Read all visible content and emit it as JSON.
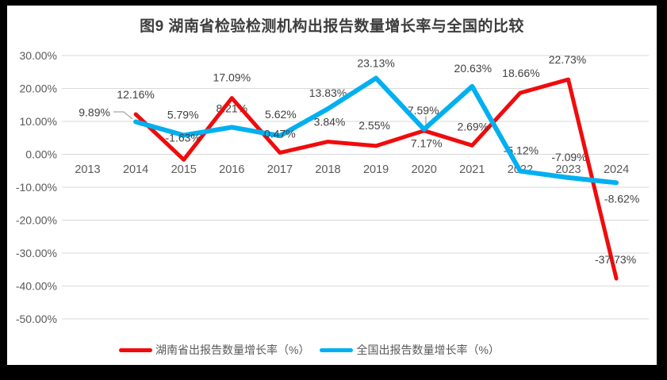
{
  "frame": {
    "background_color": "#000000",
    "chart_background_color": "#ffffff"
  },
  "chart": {
    "title": "图9 湖南省检验检测机构出报告数量增长率与全国的比较",
    "legend": [
      {
        "label": "湖南省出报告数量增长率（%）",
        "color": "#f00b0c"
      },
      {
        "label": "全国出报告数量增长率（%）",
        "color": "#00b0f0"
      }
    ]
  },
  "chart_data": {
    "type": "line",
    "title": "图9 湖南省检验检测机构出报告数量增长率与全国的比较",
    "categories": [
      "2013",
      "2014",
      "2015",
      "2016",
      "2017",
      "2018",
      "2019",
      "2020",
      "2021",
      "2022",
      "2023",
      "2024"
    ],
    "xlabel": "",
    "ylabel": "",
    "ylim": [
      -50,
      30
    ],
    "y_tick_values": [
      30,
      20,
      10,
      0,
      -10,
      -20,
      -30,
      -40,
      -50
    ],
    "y_tick_labels": [
      "30.00%",
      "20.00%",
      "10.00%",
      "0.00%",
      "-10.00%",
      "-20.00%",
      "-30.00%",
      "-40.00%",
      "-50.00%"
    ],
    "grid": true,
    "legend_position": "bottom",
    "series": [
      {
        "name": "湖南省出报告数量增长率（%）",
        "color": "#f00b0c",
        "values": [
          null,
          12.16,
          -1.63,
          17.09,
          0.47,
          3.84,
          2.55,
          7.17,
          2.69,
          18.66,
          22.73,
          -37.73
        ],
        "labels": [
          "",
          "12.16%",
          "-1.63%",
          "17.09%",
          "0.47%",
          "3.84%",
          "2.55%",
          "7.17%",
          "2.69%",
          "18.66%",
          "22.73%",
          "-37.73%"
        ]
      },
      {
        "name": "全国出报告数量增长率（%）",
        "color": "#00b0f0",
        "values": [
          null,
          9.89,
          5.79,
          8.21,
          5.62,
          13.83,
          23.13,
          7.59,
          20.63,
          -5.12,
          -7.09,
          -8.62
        ],
        "labels": [
          "",
          "9.89%",
          "5.79%",
          "8.21%",
          "5.62%",
          "13.83%",
          "23.13%",
          "7.59%",
          "20.63%",
          "-5.12%",
          "-7.09%",
          "-8.62%"
        ]
      }
    ],
    "colors": {
      "gridline": "#d9d9d9",
      "axis_text": "#595959",
      "data_label_text": "#404040",
      "leader_line": "#a6a6a6"
    }
  }
}
